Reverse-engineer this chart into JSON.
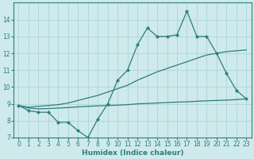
{
  "xlabel": "Humidex (Indice chaleur)",
  "bg_color": "#ceeaec",
  "grid_color": "#add4d8",
  "line_color": "#2d7d7d",
  "x": [
    0,
    1,
    2,
    3,
    4,
    5,
    6,
    7,
    8,
    9,
    10,
    11,
    12,
    13,
    14,
    15,
    16,
    17,
    18,
    19,
    20,
    21,
    22,
    23
  ],
  "line1_zigzag": [
    8.9,
    8.6,
    8.5,
    8.5,
    7.9,
    7.9,
    7.4,
    7.0,
    8.1,
    9.0,
    10.4,
    11.0,
    12.5,
    13.5,
    13.0,
    13.0,
    13.1,
    14.5,
    13.0,
    13.0,
    12.0,
    10.8,
    9.8,
    9.3
  ],
  "line2_upper": [
    8.9,
    8.8,
    8.85,
    8.9,
    8.95,
    9.05,
    9.2,
    9.35,
    9.5,
    9.7,
    9.9,
    10.1,
    10.4,
    10.65,
    10.9,
    11.1,
    11.3,
    11.5,
    11.7,
    11.9,
    12.0,
    12.1,
    12.15,
    12.2
  ],
  "line3_lower": [
    8.9,
    8.75,
    8.7,
    8.72,
    8.75,
    8.78,
    8.82,
    8.85,
    8.88,
    8.9,
    8.92,
    8.95,
    9.0,
    9.02,
    9.05,
    9.08,
    9.1,
    9.12,
    9.15,
    9.18,
    9.2,
    9.22,
    9.25,
    9.3
  ],
  "ylim": [
    7,
    15
  ],
  "xlim": [
    -0.5,
    23.5
  ],
  "yticks": [
    7,
    8,
    9,
    10,
    11,
    12,
    13,
    14
  ],
  "xticks": [
    0,
    1,
    2,
    3,
    4,
    5,
    6,
    7,
    8,
    9,
    10,
    11,
    12,
    13,
    14,
    15,
    16,
    17,
    18,
    19,
    20,
    21,
    22,
    23
  ],
  "label_fontsize": 6.5,
  "tick_fontsize": 5.5
}
